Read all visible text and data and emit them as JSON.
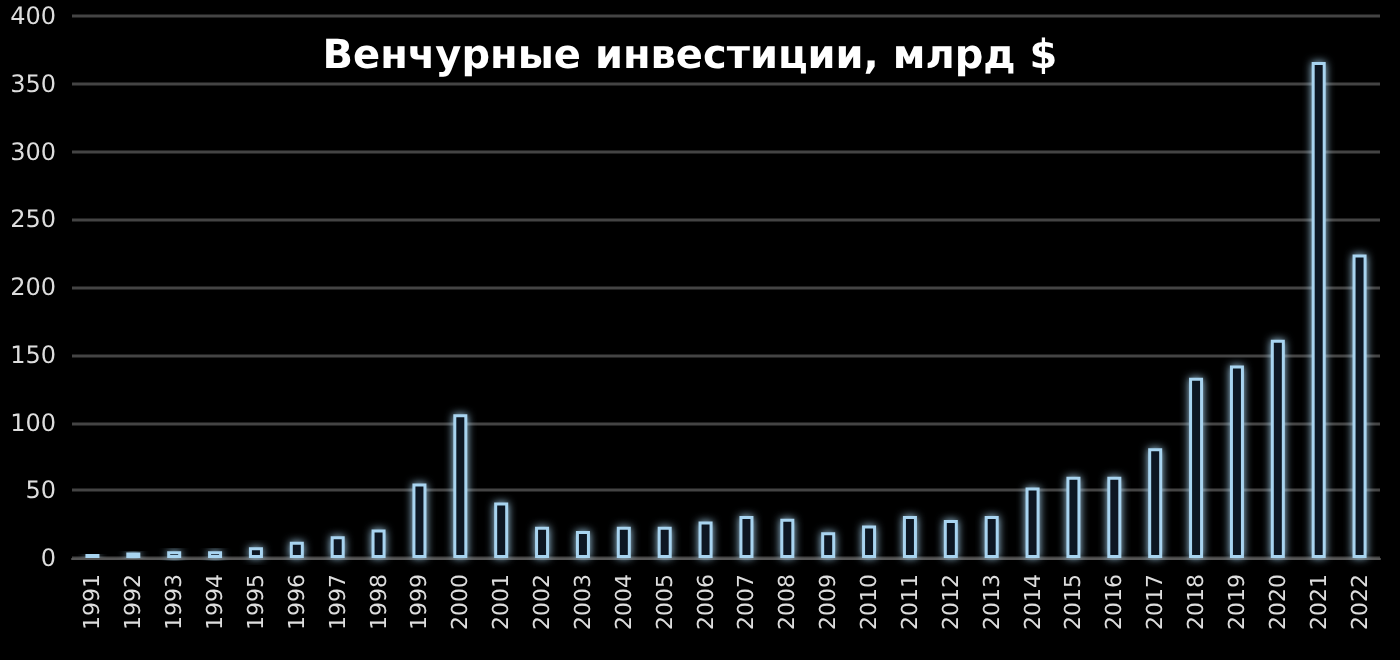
{
  "chart_data": {
    "type": "bar",
    "title": "Венчурные инвестиции, млрд $",
    "categories": [
      "1991",
      "1992",
      "1993",
      "1994",
      "1995",
      "1996",
      "1997",
      "1998",
      "1999",
      "2000",
      "2001",
      "2002",
      "2003",
      "2004",
      "2005",
      "2006",
      "2007",
      "2008",
      "2009",
      "2010",
      "2011",
      "2012",
      "2013",
      "2014",
      "2015",
      "2016",
      "2017",
      "2018",
      "2019",
      "2020",
      "2021",
      "2022"
    ],
    "values": [
      3,
      4,
      5,
      5,
      8,
      12,
      16,
      21,
      55,
      106,
      41,
      23,
      20,
      23,
      23,
      27,
      31,
      29,
      19,
      24,
      31,
      28,
      31,
      52,
      60,
      60,
      81,
      133,
      142,
      161,
      366,
      224
    ],
    "color": "#a8d4f0",
    "ylim": [
      0,
      400
    ],
    "yticks": [
      0,
      50,
      100,
      150,
      200,
      250,
      300,
      350,
      400
    ],
    "grid": "y"
  }
}
